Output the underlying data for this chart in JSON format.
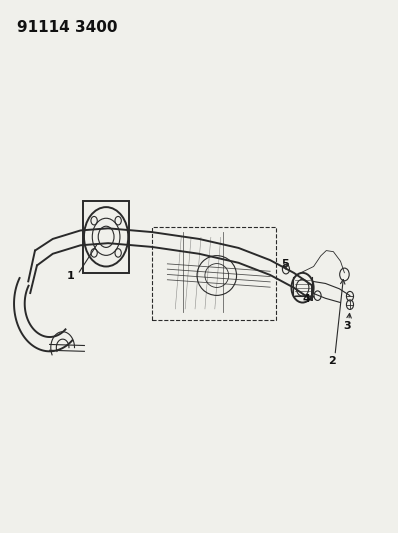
{
  "title": "91114 3400",
  "bg_color": "#f0f0eb",
  "line_color": "#2a2a2a",
  "label_color": "#111111",
  "part_numbers": [
    "1",
    "2",
    "3",
    "4",
    "5"
  ],
  "figsize": [
    3.98,
    5.33
  ],
  "dpi": 100,
  "lw_main": 1.4,
  "lw_thin": 0.8,
  "lw_detail": 0.6
}
